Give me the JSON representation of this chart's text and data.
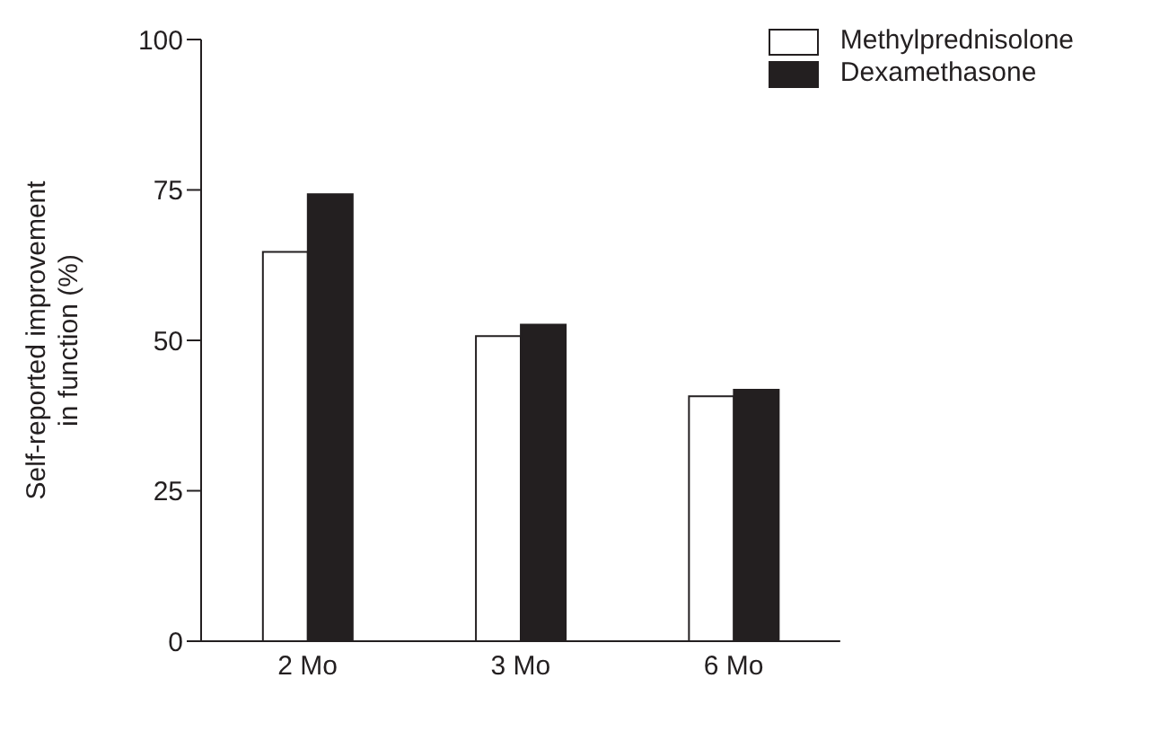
{
  "chart_data": {
    "type": "bar",
    "ylabel": "Self-reported improvement in function (%)",
    "categories": [
      "2 Mo",
      "3 Mo",
      "6 Mo"
    ],
    "series": [
      {
        "name": "Methylprednisolone",
        "color": "#ffffff",
        "values": [
          64.7,
          50.7,
          40.7
        ]
      },
      {
        "name": "Dexamethasone",
        "color": "#231f20",
        "values": [
          74.3,
          52.6,
          41.8
        ]
      }
    ],
    "ylim": [
      0,
      100
    ],
    "yticks": [
      0,
      25,
      50,
      75,
      100
    ],
    "grid": false,
    "legend": "top right"
  }
}
